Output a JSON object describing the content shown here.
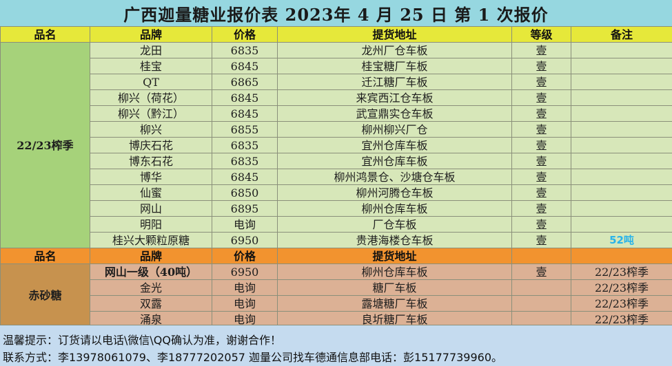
{
  "title": "广西迦量糖业报价表 2023年 4 月 25 日 第 1 次报价",
  "header": {
    "category": "品名",
    "brand": "品牌",
    "price": "价格",
    "location": "提货地址",
    "grade": "等级",
    "note": "备注"
  },
  "group1": {
    "category": "22/23榨季",
    "rows": [
      {
        "brand": "龙田",
        "price": "6835",
        "location": "龙州厂仓车板",
        "grade": "壹",
        "note": ""
      },
      {
        "brand": "桂宝",
        "price": "6845",
        "location": "桂宝糖厂车板",
        "grade": "壹",
        "note": ""
      },
      {
        "brand": "QT",
        "price": "6865",
        "location": "迁江糖厂车板",
        "grade": "壹",
        "note": ""
      },
      {
        "brand": "柳兴（荷花）",
        "price": "6845",
        "location": "来宾西江仓车板",
        "grade": "壹",
        "note": ""
      },
      {
        "brand": "柳兴（黔江）",
        "price": "6845",
        "location": "武宣鼎实仓车板",
        "grade": "壹",
        "note": ""
      },
      {
        "brand": "柳兴",
        "price": "6855",
        "location": "柳州柳兴厂仓",
        "grade": "壹",
        "note": ""
      },
      {
        "brand": "博庆石花",
        "price": "6835",
        "location": "宜州仓库车板",
        "grade": "壹",
        "note": ""
      },
      {
        "brand": "博东石花",
        "price": "6835",
        "location": "宜州仓库车板",
        "grade": "壹",
        "note": ""
      },
      {
        "brand": "博华",
        "price": "6845",
        "location": "柳州鸿景仓、沙塘仓车板",
        "grade": "壹",
        "note": ""
      },
      {
        "brand": "仙蜜",
        "price": "6850",
        "location": "柳州河腾仓车板",
        "grade": "壹",
        "note": ""
      },
      {
        "brand": "网山",
        "price": "6895",
        "location": "柳州仓库车板",
        "grade": "壹",
        "note": ""
      },
      {
        "brand": "明阳",
        "price": "电询",
        "location": "厂仓车板",
        "grade": "壹",
        "note": ""
      },
      {
        "brand": "桂兴大颗粒原糖",
        "price": "6950",
        "location": "贵港海楼仓车板",
        "grade": "壹",
        "note": "52吨"
      }
    ]
  },
  "group2": {
    "category": "赤砂糖",
    "rows": [
      {
        "brand": "网山一级（40吨）",
        "price": "6950",
        "location": "柳州仓库车板",
        "grade": "壹",
        "note": "22/23榨季"
      },
      {
        "brand": "金光",
        "price": "电询",
        "location": "糖厂车板",
        "grade": "",
        "note": "22/23榨季"
      },
      {
        "brand": "双露",
        "price": "电询",
        "location": "露塘糖厂车板",
        "grade": "",
        "note": "22/23榨季"
      },
      {
        "brand": "涌泉",
        "price": "电询",
        "location": "良圻糖厂车板",
        "grade": "",
        "note": "22/23榨季"
      }
    ]
  },
  "footer": {
    "tip": "温馨提示：订货请以电话\\微信\\QQ确认为准，谢谢合作！",
    "contact": "联系方式：李13978061079、李18777202057    迦量公司找车德通信息部电话：彭15177739960。"
  },
  "colors": {
    "title_bg": "#96d7e0",
    "header_bg": "#e6e83a",
    "group1_bg": "#d7e7b9",
    "group1_category_bg": "#a6d27a",
    "header2_bg": "#f2932f",
    "group2_bg": "#dcb195",
    "group2_category_bg": "#c7924e",
    "footer_bg": "#c5dbef",
    "note_highlight": "#29b3ea"
  }
}
